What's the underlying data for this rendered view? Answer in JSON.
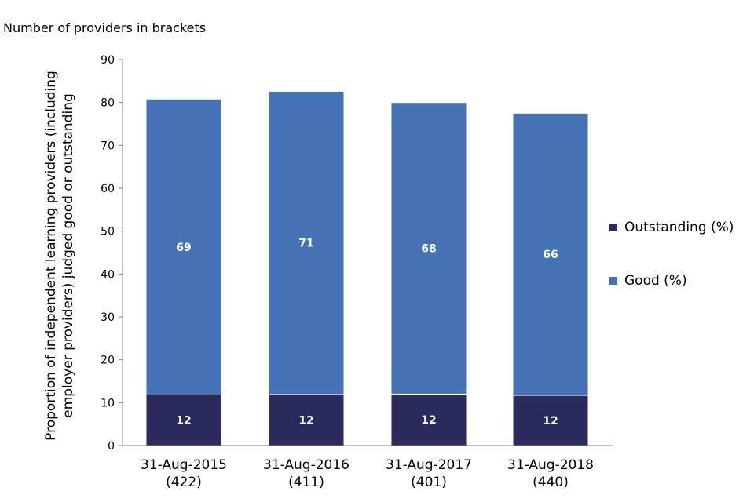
{
  "chart_data": {
    "type": "bar",
    "stacked": true,
    "subtitle": "Number of providers in brackets",
    "ylabel_line1": "Proportion of independent learning providers (including",
    "ylabel_line2": "employer providers) judged good or outstanding",
    "xlabel": "",
    "categories": [
      [
        "31-Aug-2015",
        "(422)"
      ],
      [
        "31-Aug-2016",
        "(411)"
      ],
      [
        "31-Aug-2017",
        "(401)"
      ],
      [
        "31-Aug-2018",
        "(440)"
      ]
    ],
    "series": [
      {
        "name": "Outstanding (%)",
        "values": [
          11.8,
          11.9,
          12.0,
          11.7
        ],
        "labels": [
          "12",
          "12",
          "12",
          "12"
        ],
        "color": "#2a2a5c"
      },
      {
        "name": "Good (%)",
        "values": [
          69.0,
          70.7,
          68.0,
          65.8
        ],
        "labels": [
          "69",
          "71",
          "68",
          "66"
        ],
        "color": "#4472b4"
      }
    ],
    "ylim": [
      0,
      90
    ],
    "yticks": [
      0,
      10,
      20,
      30,
      40,
      50,
      60,
      70,
      80,
      90
    ],
    "grid": false,
    "legend_position": "right"
  }
}
